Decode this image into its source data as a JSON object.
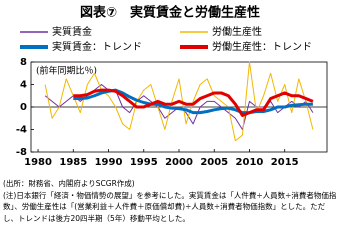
{
  "chart_data": {
    "type": "line",
    "title": "図表⑦　実質賃金と労働生産性",
    "y_annotation": "(前年同期比％)",
    "x": [
      1981,
      1982,
      1983,
      1984,
      1985,
      1986,
      1987,
      1988,
      1989,
      1990,
      1991,
      1992,
      1993,
      1994,
      1995,
      1996,
      1997,
      1998,
      1999,
      2000,
      2001,
      2002,
      2003,
      2004,
      2005,
      2006,
      2007,
      2008,
      2009,
      2010,
      2011,
      2012,
      2013,
      2014,
      2015,
      2016,
      2017,
      2018,
      2019
    ],
    "series": [
      {
        "name": "実質賃金",
        "color": "#7030a0",
        "width": 1,
        "values": [
          2,
          1,
          0,
          1,
          2,
          1,
          2,
          3,
          4,
          3,
          3,
          0,
          -1,
          1,
          2,
          1,
          0,
          -2,
          -1,
          0,
          -1,
          -3,
          0,
          1,
          1,
          0,
          -1,
          -2,
          -4,
          1,
          0,
          0,
          1,
          -1,
          0,
          1,
          0,
          1,
          -1
        ]
      },
      {
        "name": "労働生産性",
        "color": "#f2b800",
        "width": 1,
        "values": [
          4,
          -2,
          0,
          5,
          2,
          -1,
          4,
          6,
          3,
          2,
          0,
          -3,
          -4,
          1,
          3,
          4,
          0,
          -4,
          1,
          5,
          -3,
          1,
          4,
          5,
          2,
          1,
          0,
          -6,
          -5,
          8,
          -1,
          2,
          6,
          1,
          4,
          -1,
          5,
          1,
          -4
        ]
      },
      {
        "name": "実質賃金：トレンド",
        "color": "#0070c0",
        "width": 3,
        "values": [
          null,
          null,
          null,
          null,
          1.5,
          1.5,
          1.6,
          2,
          2.5,
          2.8,
          3,
          2.5,
          1.8,
          1.2,
          0.8,
          0.5,
          0.5,
          0,
          -0.2,
          -0.3,
          -0.5,
          -1,
          -1,
          -0.8,
          -0.5,
          -0.3,
          -0.2,
          -0.5,
          -1,
          -1,
          -0.8,
          -0.8,
          -0.5,
          0,
          0,
          0.3,
          0.4,
          0.5,
          0.5
        ]
      },
      {
        "name": "労働生産性：トレンド",
        "color": "#e00000",
        "width": 3,
        "values": [
          null,
          null,
          null,
          null,
          2,
          2,
          2.2,
          2.8,
          3,
          3,
          2.8,
          2,
          1,
          0,
          0,
          0.5,
          1,
          0.5,
          0.5,
          1,
          0.5,
          0.5,
          1.5,
          2,
          2.5,
          2.5,
          2,
          0.5,
          -1.5,
          -1,
          -0.5,
          -0.5,
          1.5,
          2,
          2.5,
          2,
          2,
          1.5,
          1
        ]
      }
    ],
    "xlim": [
      1979,
      2021
    ],
    "xticks": [
      1980,
      1985,
      1990,
      1995,
      2000,
      2005,
      2010,
      2015
    ],
    "ylim": [
      -8,
      8
    ],
    "yticks": [
      -8,
      -4,
      0,
      4,
      8
    ],
    "source": "(出所：財務省、内閣府よりSCGR作成)",
    "note": "(注)日本銀行「経済・物価情勢の展望」を参考にした。実質賃金は「人件費÷人員数÷消費者物価指数」、労働生産性は「(営業利益＋人件費＋原価償却費)÷人員数÷消費者物価指数」とした。ただし、トレンドは後方20四半期（5年）移動平均とした。"
  }
}
